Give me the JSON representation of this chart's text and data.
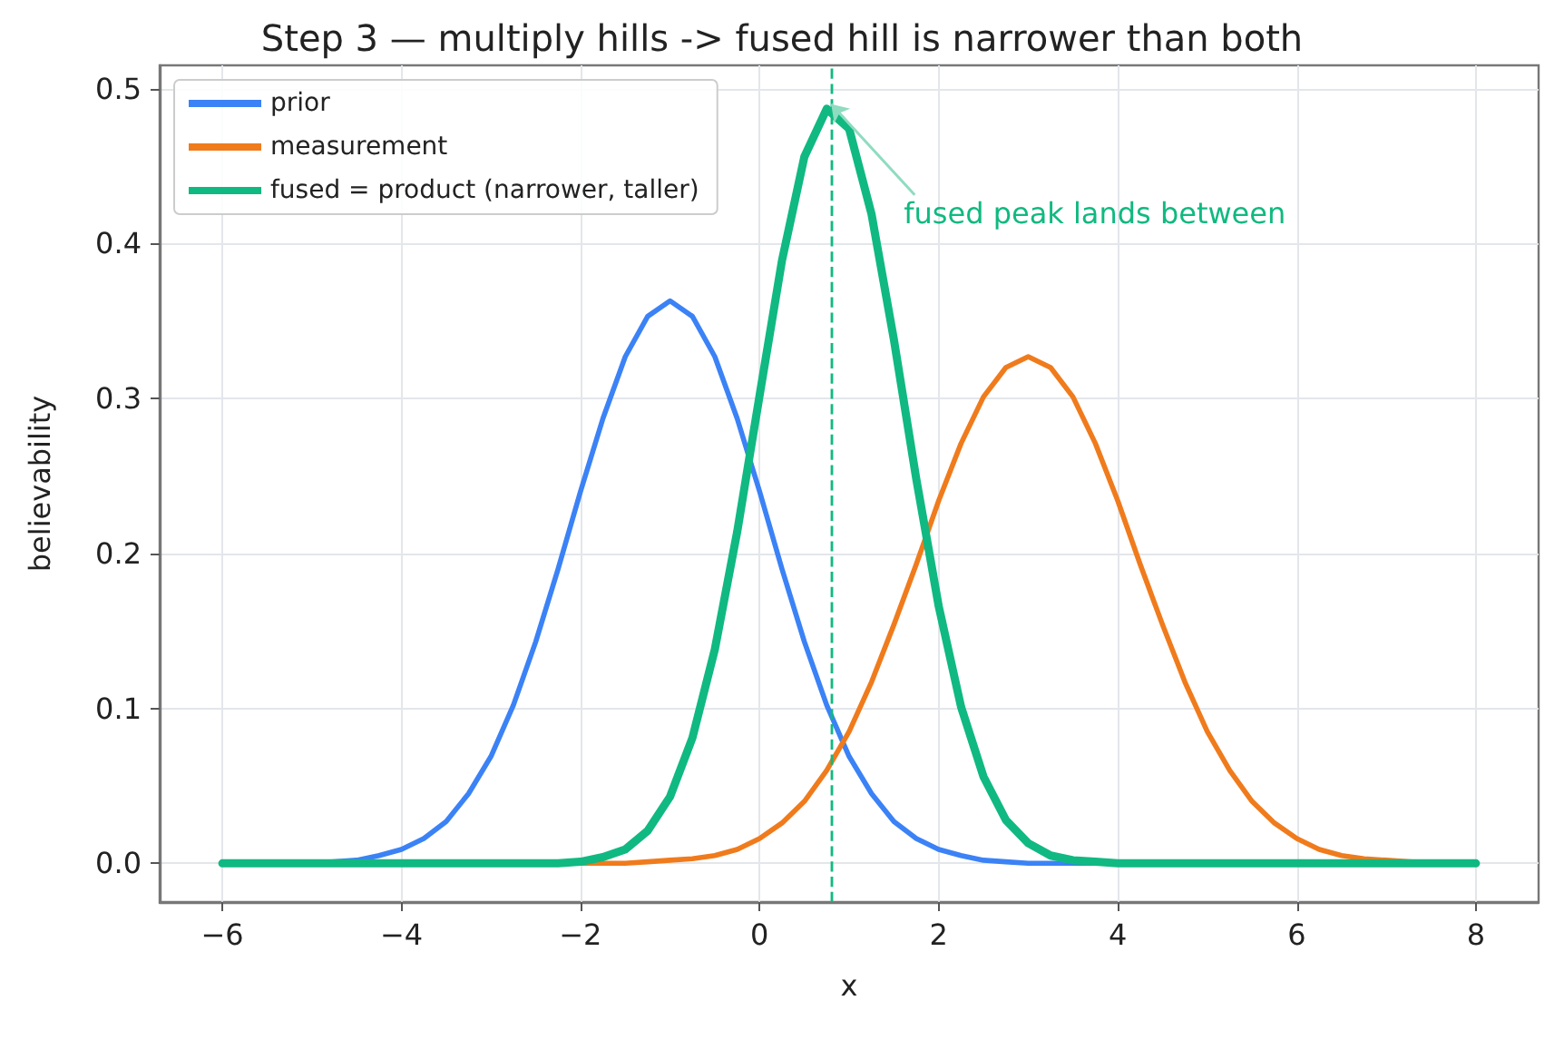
{
  "chart_data": {
    "type": "line",
    "title": "Step 3 — multiply hills -> fused hill is narrower than both",
    "xlabel": "x",
    "ylabel": "believability",
    "x": [
      -6,
      -5.75,
      -5.5,
      -5.25,
      -5,
      -4.75,
      -4.5,
      -4.25,
      -4,
      -3.75,
      -3.5,
      -3.25,
      -3,
      -2.75,
      -2.5,
      -2.25,
      -2,
      -1.75,
      -1.5,
      -1.25,
      -1,
      -0.75,
      -0.5,
      -0.25,
      0,
      0.25,
      0.5,
      0.75,
      1,
      1.25,
      1.5,
      1.75,
      2,
      2.25,
      2.5,
      2.75,
      3,
      3.25,
      3.5,
      3.75,
      4,
      4.25,
      4.5,
      4.75,
      5,
      5.25,
      5.5,
      5.75,
      6,
      6.25,
      6.5,
      6.75,
      7,
      7.25,
      7.5,
      7.75,
      8
    ],
    "series": [
      {
        "name": "prior",
        "color": "#3b82f6",
        "values": [
          null,
          null,
          null,
          null,
          0,
          0.001,
          0.002,
          0.005,
          0.009,
          0.016,
          0.027,
          0.045,
          0.069,
          0.102,
          0.143,
          0.19,
          0.24,
          0.287,
          0.327,
          0.353,
          0.363,
          0.353,
          0.327,
          0.287,
          0.24,
          0.19,
          0.143,
          0.102,
          0.069,
          0.045,
          0.027,
          0.016,
          0.009,
          0.005,
          0.002,
          0.001,
          0,
          0,
          0,
          0,
          0,
          null,
          null,
          null,
          null,
          null,
          null,
          null,
          null,
          null,
          null,
          null,
          null,
          null,
          null,
          null,
          null
        ]
      },
      {
        "name": "measurement",
        "color": "#f07b1c",
        "values": [
          null,
          null,
          null,
          null,
          null,
          null,
          null,
          null,
          null,
          null,
          null,
          null,
          null,
          null,
          null,
          0,
          0,
          0,
          0,
          0.001,
          0.002,
          0.003,
          0.005,
          0.009,
          0.016,
          0.026,
          0.04,
          0.06,
          0.085,
          0.117,
          0.154,
          0.193,
          0.234,
          0.271,
          0.301,
          0.32,
          0.327,
          0.32,
          0.301,
          0.271,
          0.234,
          0.193,
          0.154,
          0.117,
          0.085,
          0.06,
          0.04,
          0.026,
          0.016,
          0.009,
          0.005,
          0.003,
          0.002,
          0.001,
          0,
          null,
          null
        ]
      },
      {
        "name": "fused = product (narrower, taller)",
        "color": "#10b981",
        "values": [
          0,
          0,
          0,
          0,
          0,
          0,
          0,
          0,
          0,
          0,
          0,
          0,
          0,
          0,
          0,
          0,
          0.001,
          0.004,
          0.009,
          0.021,
          0.043,
          0.081,
          0.138,
          0.214,
          0.302,
          0.389,
          0.456,
          0.487,
          0.474,
          0.419,
          0.338,
          0.248,
          0.166,
          0.101,
          0.056,
          0.028,
          0.013,
          0.005,
          0.002,
          0.001,
          0,
          0,
          0,
          0,
          0,
          0,
          0,
          0,
          0,
          0,
          0,
          0,
          0,
          0,
          0,
          0,
          0
        ]
      }
    ],
    "xlim": [
      -6.7,
      8.7
    ],
    "xticks": [
      {
        "value": -6,
        "label": "−6"
      },
      {
        "value": -4,
        "label": "−4"
      },
      {
        "value": -2,
        "label": "−2"
      },
      0,
      2,
      4,
      6,
      8
    ],
    "ylim": [
      -0.025,
      0.515
    ],
    "yticks": [
      {
        "value": 0,
        "label": "0.0"
      },
      0.1,
      0.2,
      0.3,
      0.4,
      0.5
    ],
    "ref_lines": [
      {
        "axis": "x",
        "value": 0.8,
        "color": "#10b981",
        "line_style": "dashed"
      }
    ],
    "annotations": [
      {
        "text": "fused peak lands between",
        "x": 0.8,
        "y": 0.49
      }
    ],
    "grid": true,
    "legend": "top left",
    "marker": "none",
    "line_style": "solid"
  }
}
